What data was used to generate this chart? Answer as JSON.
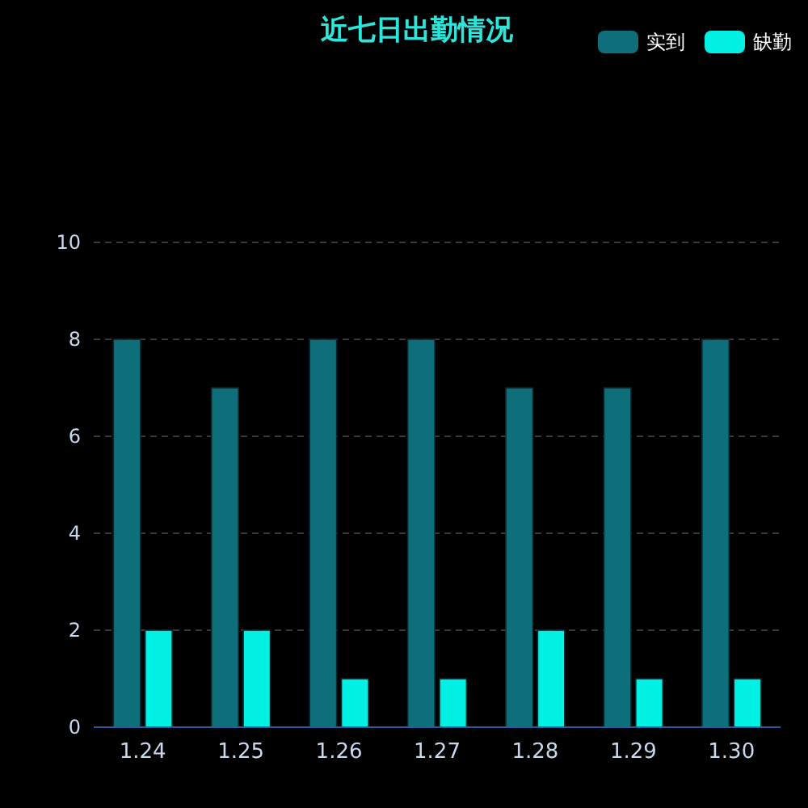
{
  "chart_data": {
    "type": "bar",
    "title": "近七日出勤情况",
    "categories": [
      "1.24",
      "1.25",
      "1.26",
      "1.27",
      "1.28",
      "1.29",
      "1.30"
    ],
    "series": [
      {
        "name": "实到",
        "color": "#0e6e7a",
        "values": [
          8,
          7,
          8,
          8,
          7,
          7,
          8
        ]
      },
      {
        "name": "缺勤",
        "color": "#00f0e4",
        "values": [
          2,
          2,
          1,
          1,
          2,
          1,
          1
        ]
      }
    ],
    "ylim": [
      0,
      10
    ],
    "yticks": [
      0,
      2,
      4,
      6,
      8,
      10
    ],
    "grid": "y",
    "legend": "top right"
  }
}
